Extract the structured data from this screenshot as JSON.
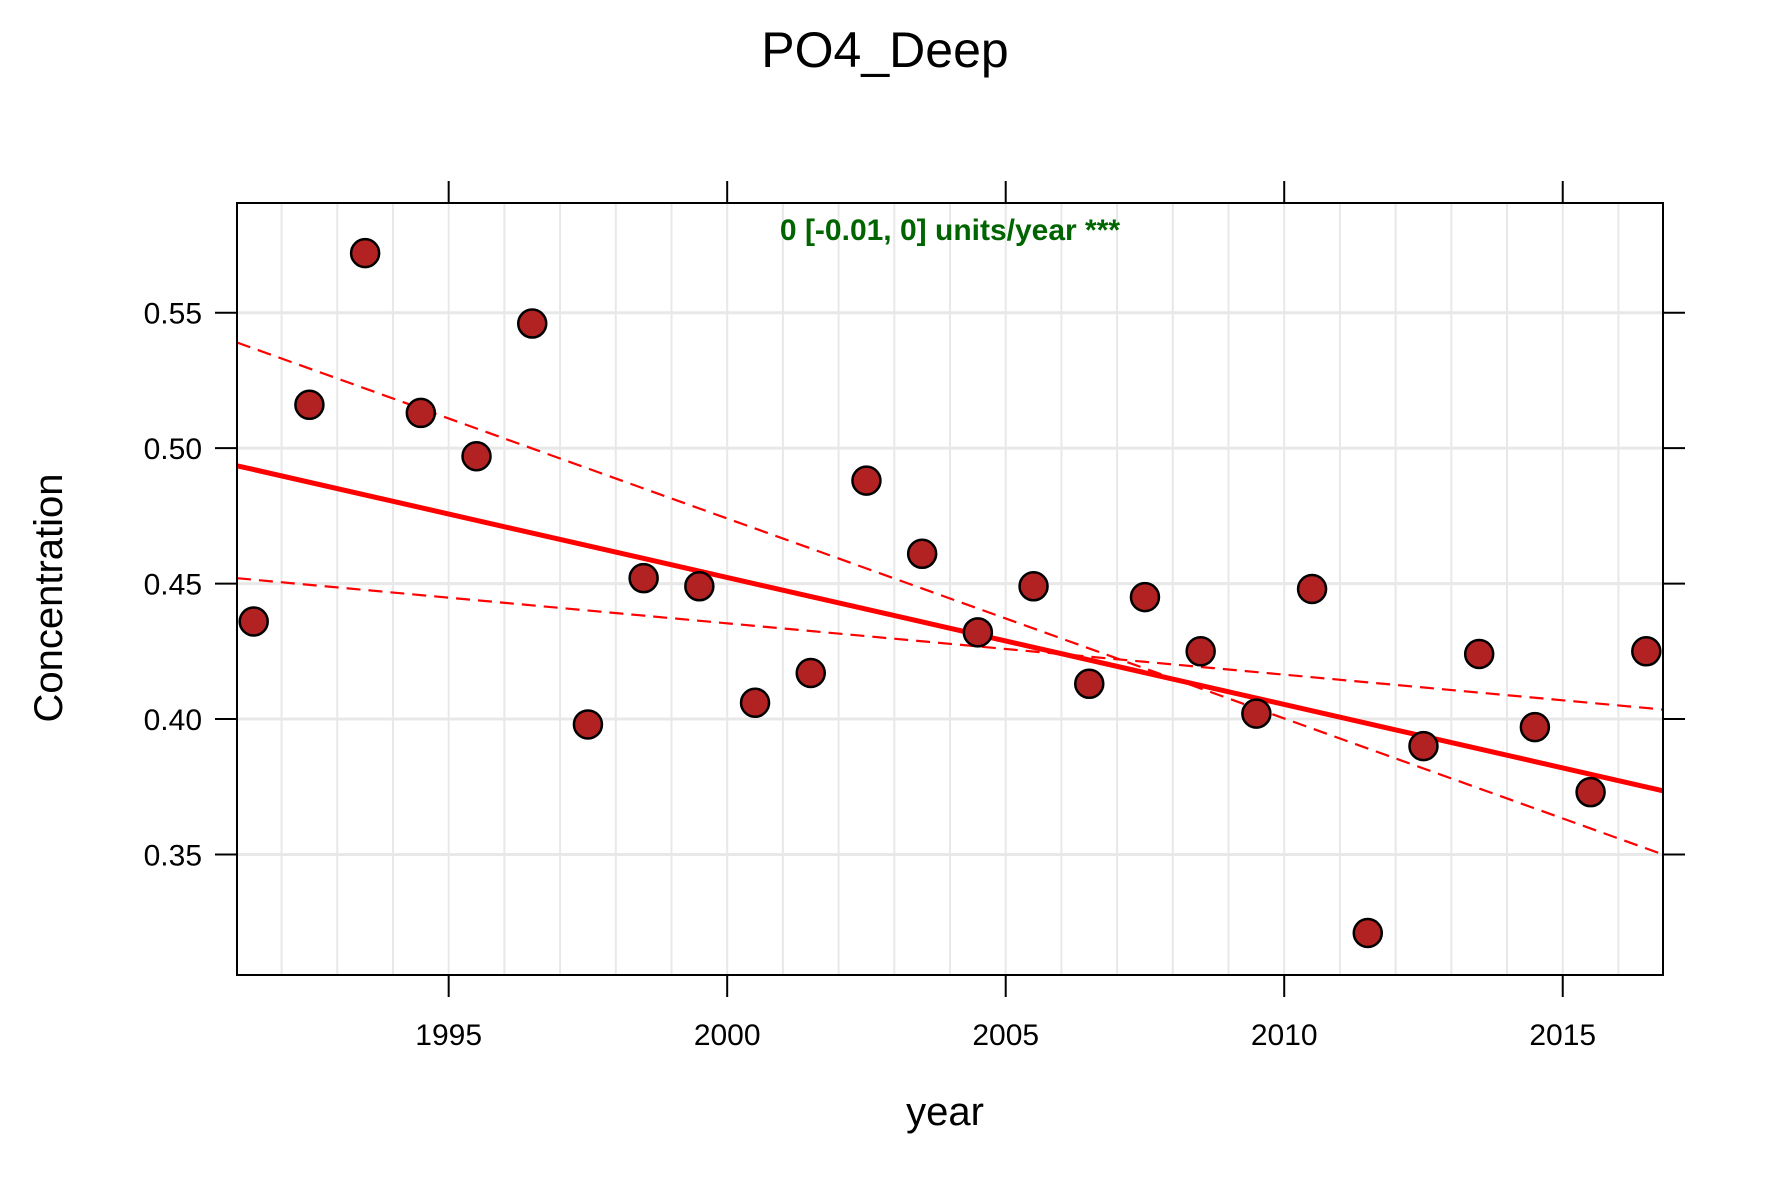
{
  "chart_data": {
    "type": "scatter",
    "title": "PO4_Deep",
    "xlabel": "year",
    "ylabel": "Concentration",
    "annotation": "0 [-0.01, 0] units/year ***",
    "xlim": [
      1991.2,
      2016.8
    ],
    "ylim": [
      0.3055,
      0.5905
    ],
    "x_ticks": [
      1995,
      2000,
      2005,
      2010,
      2015
    ],
    "x_tick_labels": [
      "1995",
      "2000",
      "2005",
      "2010",
      "2015"
    ],
    "y_ticks": [
      0.35,
      0.4,
      0.45,
      0.5,
      0.55
    ],
    "y_tick_labels": [
      "0.35",
      "0.40",
      "0.45",
      "0.50",
      "0.55"
    ],
    "grid": true,
    "points": {
      "x": [
        1991.5,
        1992.5,
        1993.5,
        1994.5,
        1995.5,
        1996.5,
        1997.5,
        1998.5,
        1999.5,
        2000.5,
        2001.5,
        2002.5,
        2003.5,
        2004.5,
        2005.5,
        2006.5,
        2007.5,
        2008.5,
        2009.5,
        2010.5,
        2011.5,
        2012.5,
        2013.5,
        2014.5,
        2015.5,
        2016.5
      ],
      "y": [
        0.436,
        0.516,
        0.572,
        0.513,
        0.497,
        0.546,
        0.398,
        0.452,
        0.449,
        0.406,
        0.417,
        0.488,
        0.461,
        0.432,
        0.449,
        0.413,
        0.445,
        0.425,
        0.402,
        0.448,
        0.321,
        0.39,
        0.424,
        0.397,
        0.373,
        0.425
      ]
    },
    "trend": {
      "x": [
        1991.2,
        2016.8
      ],
      "y": [
        0.4935,
        0.3735
      ]
    },
    "ci_upper": {
      "x": [
        1991.2,
        2016.8
      ],
      "y": [
        0.539,
        0.35
      ]
    },
    "ci_lower": {
      "x": [
        1991.2,
        2016.8
      ],
      "y": [
        0.452,
        0.4035
      ]
    },
    "colors": {
      "point_fill": "#B22222",
      "point_stroke": "#000000",
      "trend": "#FF0000",
      "annotation": "#006400",
      "grid": "#E8E8E8",
      "frame": "#000000"
    }
  }
}
